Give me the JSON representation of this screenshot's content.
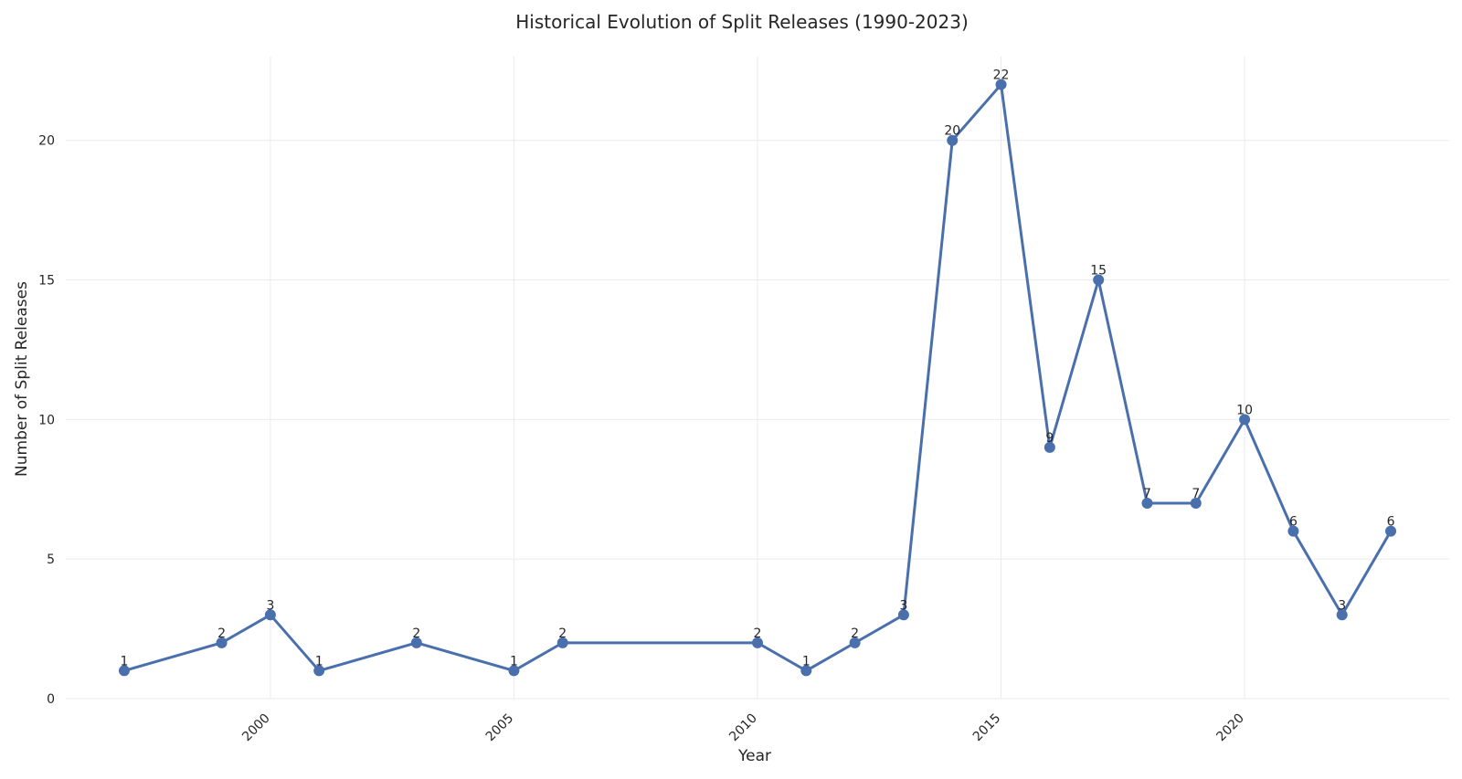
{
  "chart_data": {
    "type": "line",
    "title": "Historical Evolution of Split Releases (1990-2023)",
    "xlabel": "Year",
    "ylabel": "Number of Split Releases",
    "x": [
      1997,
      1999,
      2000,
      2001,
      2003,
      2005,
      2006,
      2010,
      2011,
      2012,
      2013,
      2014,
      2015,
      2016,
      2017,
      2018,
      2019,
      2020,
      2021,
      2022,
      2023
    ],
    "series": [
      {
        "values": [
          1,
          2,
          3,
          1,
          2,
          1,
          2,
          2,
          1,
          2,
          3,
          20,
          22,
          9,
          15,
          7,
          7,
          10,
          6,
          3,
          6
        ]
      }
    ],
    "xlim": [
      1995.8,
      2024.2
    ],
    "ylim": [
      0,
      23
    ],
    "xticks": [
      2000,
      2005,
      2010,
      2015,
      2020
    ],
    "yticks": [
      0,
      5,
      10,
      15,
      20
    ],
    "grid": true,
    "line_color": "#4a6fad",
    "data_labels": true
  }
}
